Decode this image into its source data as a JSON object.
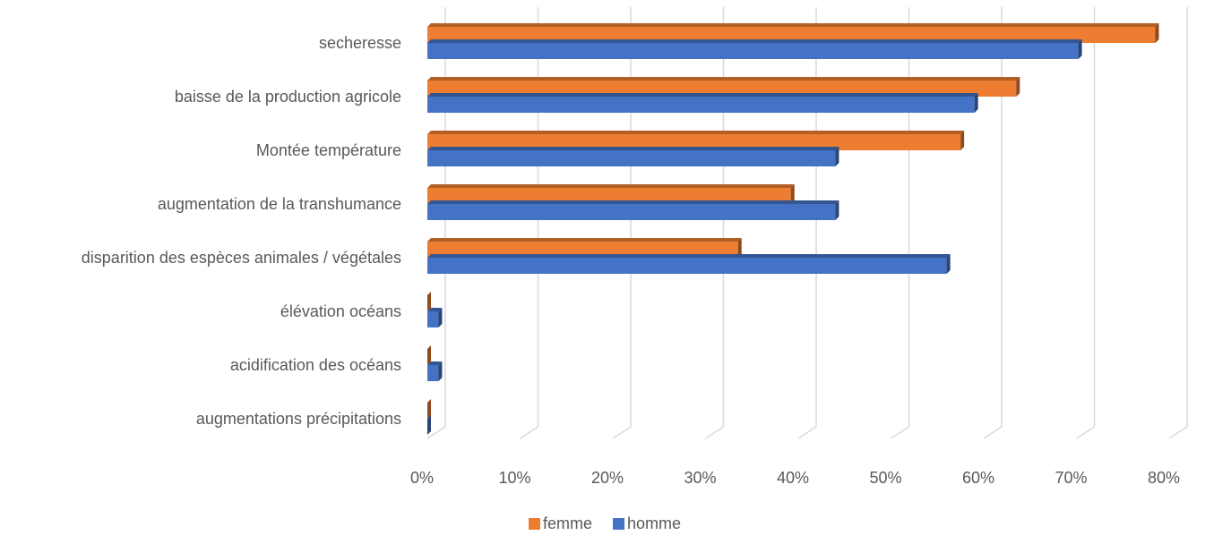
{
  "chart_data": {
    "type": "bar",
    "orientation": "horizontal",
    "style": "3d-clustered",
    "categories": [
      "secheresse",
      "baisse de la production agricole",
      "Montée température",
      "augmentation de la transhumance",
      "disparition des espèces animales / végétales",
      "élévation océans",
      "acidification des océans",
      "augmentations précipitations"
    ],
    "series": [
      {
        "name": "femme",
        "color": "#ED7D31",
        "values": [
          0.785,
          0.635,
          0.575,
          0.392,
          0.335,
          0.0,
          0.0,
          0.0
        ]
      },
      {
        "name": "homme",
        "color": "#4472C4",
        "values": [
          0.702,
          0.59,
          0.44,
          0.44,
          0.56,
          0.012,
          0.012,
          0.0
        ]
      }
    ],
    "xlim": [
      0,
      0.8
    ],
    "xticks": [
      "0%",
      "10%",
      "20%",
      "30%",
      "40%",
      "50%",
      "60%",
      "70%",
      "80%"
    ],
    "grid": true,
    "legend_position": "bottom",
    "title": "",
    "xlabel": "",
    "ylabel": ""
  }
}
